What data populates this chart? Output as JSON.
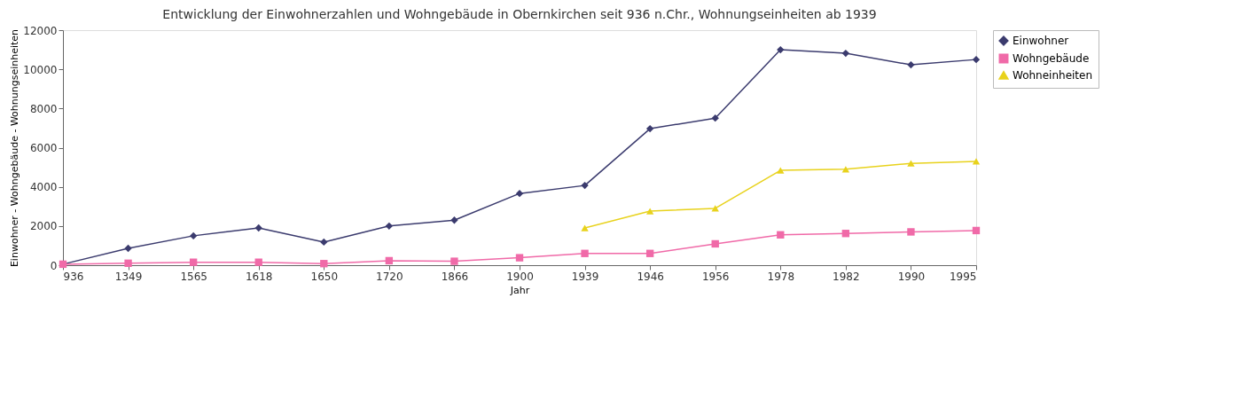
{
  "chart_data": {
    "type": "line",
    "title": "Entwicklung der Einwohnerzahlen und Wohngebäude in Obernkirchen seit 936 n.Chr., Wohnungseinheiten ab 1939",
    "xlabel": "Jahr",
    "ylabel": "Einwohner - Wohngebäude - Wohnungseinheiten",
    "categories": [
      "936",
      "1349",
      "1565",
      "1618",
      "1650",
      "1720",
      "1866",
      "1900",
      "1939",
      "1946",
      "1956",
      "1978",
      "1982",
      "1990",
      "1995"
    ],
    "series": [
      {
        "name": "Einwohner",
        "color": "#3b3b6e",
        "marker": "diamond",
        "values": [
          50,
          860,
          1500,
          1900,
          1180,
          2000,
          2300,
          3660,
          4070,
          6970,
          7510,
          11000,
          10820,
          10230,
          10500
        ]
      },
      {
        "name": "Wohngebäude",
        "color": "#f06aa8",
        "marker": "square",
        "values": [
          50,
          100,
          150,
          150,
          80,
          230,
          200,
          380,
          600,
          600,
          1090,
          1550,
          1620,
          1700,
          1770
        ]
      },
      {
        "name": "Wohneinheiten",
        "color": "#e8d21c",
        "marker": "triangle",
        "values": [
          null,
          null,
          null,
          null,
          null,
          null,
          null,
          null,
          1900,
          2760,
          2900,
          4840,
          4900,
          5200,
          5300
        ]
      }
    ],
    "ylim": [
      0,
      12000
    ],
    "yticks": [
      0,
      2000,
      4000,
      6000,
      8000,
      10000,
      12000
    ],
    "grid": false,
    "legend": "right",
    "line_style": "solid"
  }
}
